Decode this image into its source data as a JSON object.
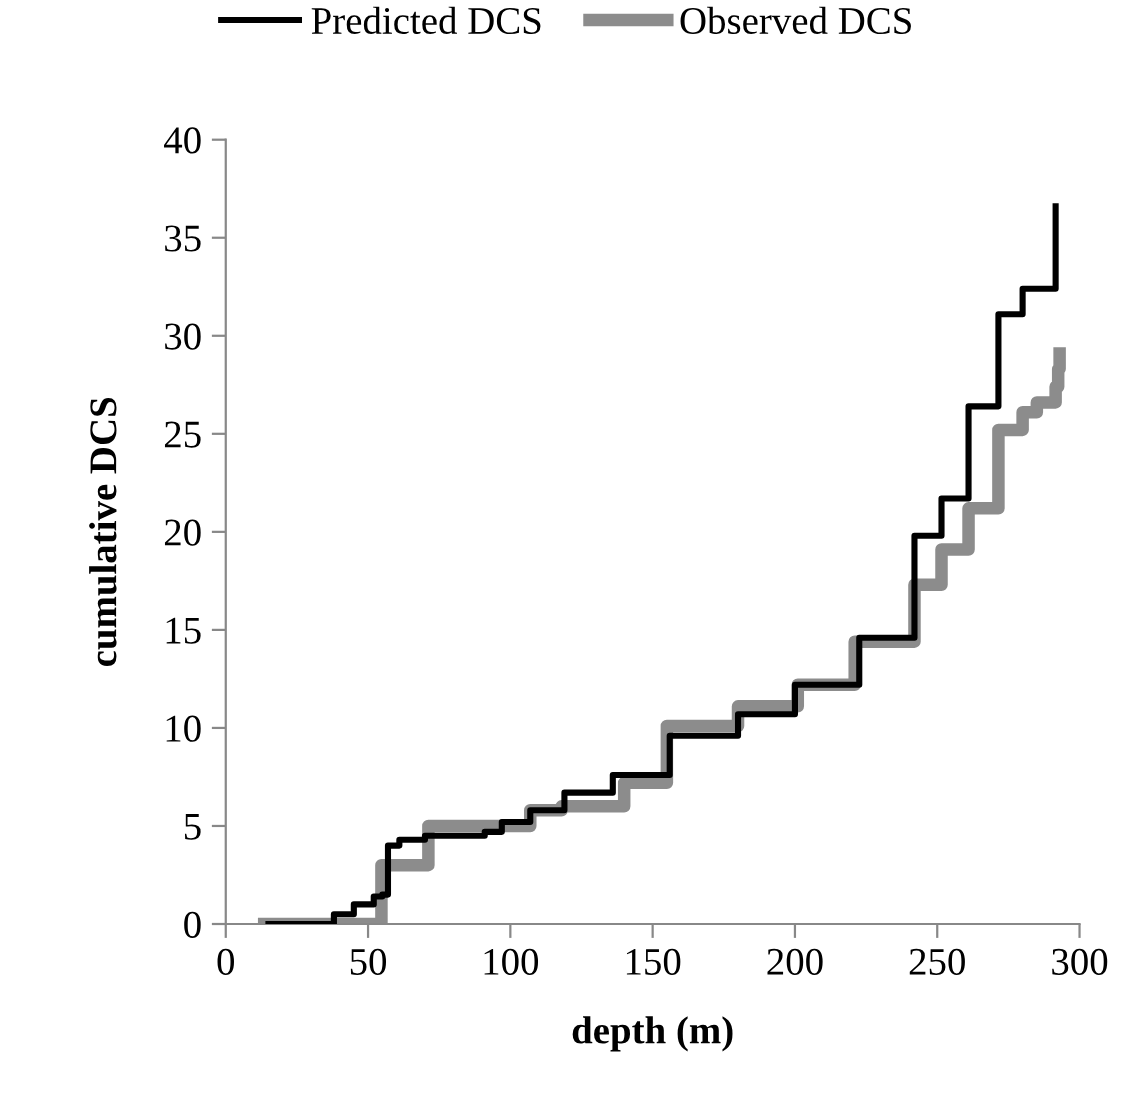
{
  "chart_data": {
    "type": "step",
    "xlabel": "depth (m)",
    "ylabel": "cumulative DCS",
    "xlim": [
      0,
      300
    ],
    "xticks": [
      0,
      50,
      100,
      150,
      200,
      250,
      300
    ],
    "ylim": [
      0,
      40
    ],
    "yticks": [
      0,
      5,
      10,
      15,
      20,
      25,
      30,
      35,
      40
    ],
    "grid": false,
    "legend": "top",
    "marker": "none",
    "line_style": "solid",
    "series": [
      {
        "name": "Predicted DCS",
        "color": "#000000",
        "x": [
          15,
          35,
          38,
          45,
          52,
          55,
          57,
          61,
          70,
          91,
          97,
          107,
          119,
          136,
          156,
          180,
          200,
          222.6,
          242,
          251.5,
          261,
          271.5,
          280,
          291.6
        ],
        "values": [
          0,
          0,
          0.5,
          1.0,
          1.4,
          1.5,
          4.0,
          4.3,
          4.5,
          4.7,
          5.2,
          5.8,
          6.7,
          7.6,
          9.6,
          10.7,
          12.2,
          14.6,
          19.8,
          21.7,
          26.4,
          31.1,
          32.4,
          36.6
        ]
      },
      {
        "name": "Observed DCS",
        "color": "#8c8c8c",
        "x": [
          13.5,
          54.7,
          71.2,
          107,
          118,
          140,
          155,
          180,
          201,
          221,
          242,
          251.5,
          261,
          271.5,
          280,
          285,
          291.6,
          292.5,
          293
        ],
        "values": [
          0,
          3.0,
          5.0,
          5.8,
          6.0,
          7.2,
          10.1,
          11.1,
          12.2,
          14.4,
          17.3,
          19.1,
          21.2,
          25.2,
          26.1,
          26.6,
          27.4,
          28.3,
          29.1
        ]
      }
    ]
  }
}
